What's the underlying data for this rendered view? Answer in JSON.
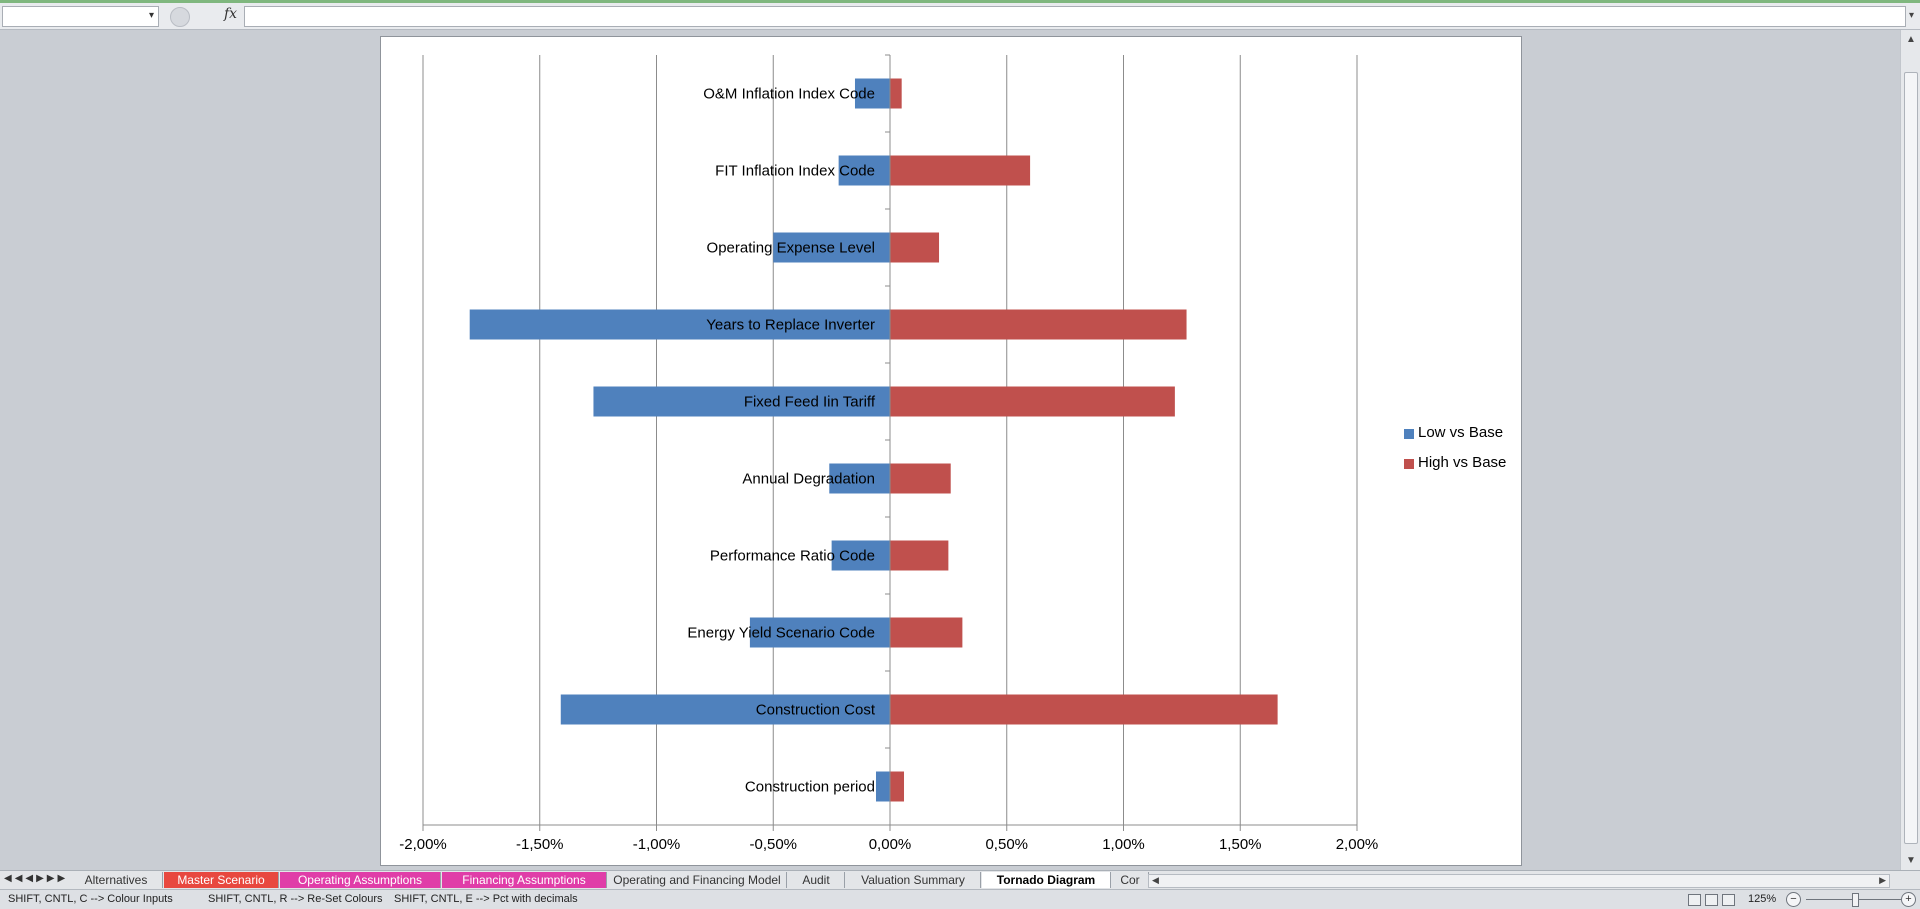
{
  "ui": {
    "name_box": "",
    "fx_symbol": "fx",
    "formula_value": "",
    "sheet_tabs": [
      {
        "label": "Alternatives",
        "color": "#e3e5e8",
        "text_color": "#333333"
      },
      {
        "label": "Master Scenario",
        "color": "#e8483f",
        "text_color": "#ffffff"
      },
      {
        "label": "Operating Assumptions",
        "color": "#e03da8",
        "text_color": "#ffffff"
      },
      {
        "label": "Financing Assumptions",
        "color": "#e03da8",
        "text_color": "#ffffff"
      },
      {
        "label": "Operating and Financing Model",
        "color": "#e3e5e8",
        "text_color": "#333333"
      },
      {
        "label": "Audit",
        "color": "#e3e5e8",
        "text_color": "#333333"
      },
      {
        "label": "Valuation Summary",
        "color": "#e3e5e8",
        "text_color": "#333333"
      },
      {
        "label": "Tornado Diagram",
        "color": "#ffffff",
        "text_color": "#000000",
        "active": true
      },
      {
        "label": "Cor",
        "color": "#e3e5e8",
        "text_color": "#333333"
      }
    ],
    "status_messages": [
      "SHIFT, CNTL, C --> Colour Inputs",
      "SHIFT, CNTL, R --> Re-Set Colours",
      "SHIFT, CNTL, E --> Pct with decimals"
    ],
    "zoom": "125%"
  },
  "chart_data": {
    "type": "bar",
    "orientation": "horizontal",
    "title": "",
    "xlabel": "",
    "ylabel": "",
    "categories": [
      "O&M Inflation Index Code",
      "FIT Inflation Index Code",
      "Operating Expense Level",
      "Years to Replace Inverter",
      "Fixed Feed Iin Tariff",
      "Annual Degradation",
      "Performance Ratio Code",
      "Energy Yield Scenario Code",
      "Construction Cost",
      "Construction period"
    ],
    "series": [
      {
        "name": "Low vs Base",
        "color": "#4f81bd",
        "values": [
          -0.15,
          -0.22,
          -0.5,
          -1.8,
          -1.27,
          -0.26,
          -0.25,
          -0.6,
          -1.41,
          -0.06
        ]
      },
      {
        "name": "High vs Base",
        "color": "#c0504d",
        "values": [
          0.05,
          0.6,
          0.21,
          1.27,
          1.22,
          0.26,
          0.25,
          0.31,
          1.66,
          0.06
        ]
      }
    ],
    "xlim": [
      -2.0,
      2.0
    ],
    "xtick_values": [
      -2,
      -1.5,
      -1,
      -0.5,
      0,
      0.5,
      1,
      1.5,
      2
    ],
    "xtick_labels": [
      "-2,00%",
      "-1,50%",
      "-1,00%",
      "-0,50%",
      "0,00%",
      "0,50%",
      "1,00%",
      "1,50%",
      "2,00%"
    ],
    "grid": "vertical",
    "legend_position": "right",
    "stacked_overlay": true
  }
}
